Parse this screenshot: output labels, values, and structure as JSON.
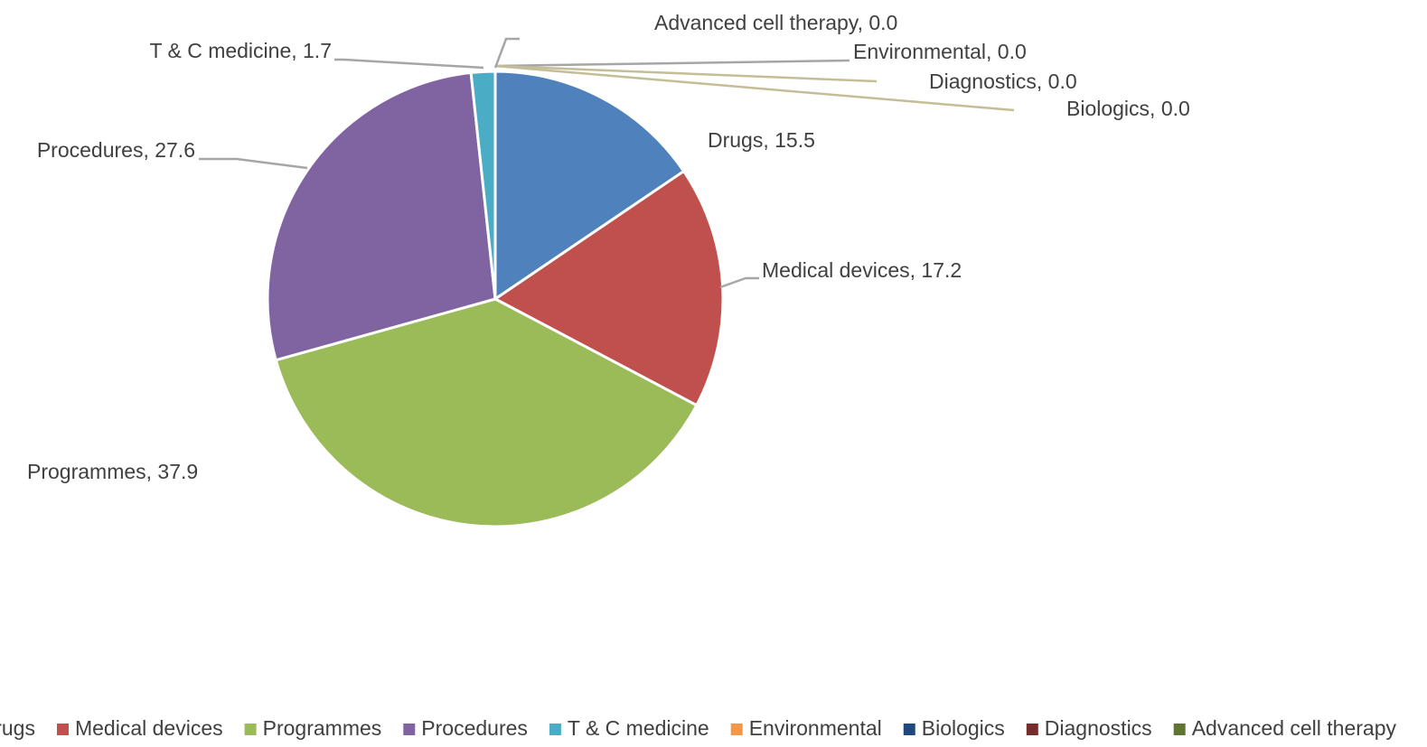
{
  "chart_data": {
    "type": "pie",
    "categories": [
      "Drugs",
      "Medical devices",
      "Programmes",
      "Procedures",
      "T & C medicine",
      "Environmental",
      "Biologics",
      "Diagnostics",
      "Advanced cell therapy"
    ],
    "values": [
      15.5,
      17.2,
      37.9,
      27.6,
      1.7,
      0,
      0,
      0,
      0
    ],
    "value_labels": [
      "Drugs, 15.5",
      "Medical devices, 17.2",
      "Programmes, 37.9",
      "Procedures, 27.6",
      "T & C medicine, 1.7",
      "Environmental, 0.0",
      "Biologics, 0.0",
      "Diagnostics, 0.0",
      "Advanced cell therapy, 0.0"
    ],
    "colors": [
      "#4f81bd",
      "#c0504d",
      "#9bbb59",
      "#8064a2",
      "#4bacc6",
      "#f79646",
      "#1f497d",
      "#772c2a",
      "#5f7530"
    ],
    "legend": "bottom"
  }
}
